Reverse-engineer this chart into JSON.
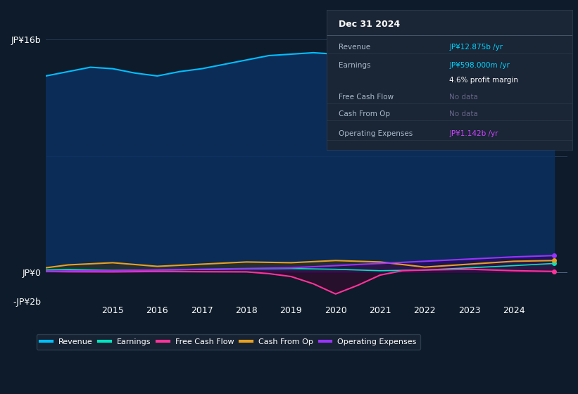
{
  "background_color": "#0d1b2a",
  "plot_bg_color": "#0d1b2a",
  "title_box_date": "Dec 31 2024",
  "ylabel_top": "JP¥16b",
  "ylabel_zero": "JP¥0",
  "ylabel_bottom": "-JP¥2b",
  "x_ticks": [
    2015,
    2016,
    2017,
    2018,
    2019,
    2020,
    2021,
    2022,
    2023,
    2024
  ],
  "colors": {
    "revenue": "#00bfff",
    "earnings": "#00e5c0",
    "free_cash_flow": "#ff3399",
    "cash_from_op": "#e8a020",
    "operating_expenses": "#9933ff"
  },
  "legend": [
    {
      "label": "Revenue",
      "color": "#00bfff"
    },
    {
      "label": "Earnings",
      "color": "#00e5c0"
    },
    {
      "label": "Free Cash Flow",
      "color": "#ff3399"
    },
    {
      "label": "Cash From Op",
      "color": "#e8a020"
    },
    {
      "label": "Operating Expenses",
      "color": "#9933ff"
    }
  ]
}
